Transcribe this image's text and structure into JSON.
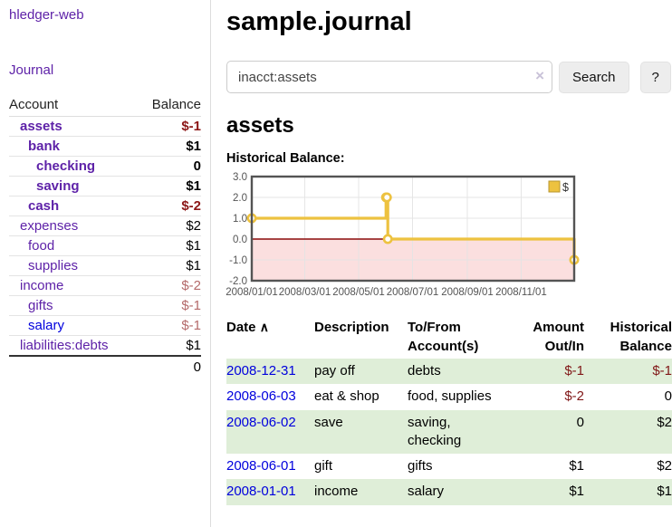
{
  "app": {
    "title": "hledger-web"
  },
  "nav": {
    "journal": "Journal"
  },
  "sidebar": {
    "columns": {
      "account": "Account",
      "balance": "Balance"
    },
    "accounts": [
      {
        "name": "assets",
        "balance": "$-1"
      },
      {
        "name": "bank",
        "balance": "$1"
      },
      {
        "name": "checking",
        "balance": "0"
      },
      {
        "name": "saving",
        "balance": "$1"
      },
      {
        "name": "cash",
        "balance": "$-2"
      },
      {
        "name": "expenses",
        "balance": "$2"
      },
      {
        "name": "food",
        "balance": "$1"
      },
      {
        "name": "supplies",
        "balance": "$1"
      },
      {
        "name": "income",
        "balance": "$-2"
      },
      {
        "name": "gifts",
        "balance": "$-1"
      },
      {
        "name": "salary",
        "balance": "$-1"
      },
      {
        "name": "liabilities:debts",
        "balance": "$1"
      }
    ],
    "total": "0"
  },
  "main": {
    "title": "sample.journal",
    "search": {
      "value": "inacct:assets",
      "clear_icon": "×",
      "search_button": "Search",
      "help_button": "?"
    },
    "account_title": "assets"
  },
  "chart_data": {
    "type": "line",
    "title": "Historical Balance:",
    "series": [
      {
        "name": "$",
        "color": "#edc240",
        "step": true,
        "x": [
          "2008-01-01",
          "2008-06-01",
          "2008-06-02",
          "2008-06-03",
          "2008-12-31"
        ],
        "values": [
          1,
          2,
          2,
          0,
          -1
        ]
      }
    ],
    "xlim": [
      "2008-01-01",
      "2008-12-31"
    ],
    "ylim": [
      -2,
      3
    ],
    "y_ticks": [
      3.0,
      2.0,
      1.0,
      0.0,
      -1.0,
      -2.0
    ],
    "x_ticks": [
      "2008/01/01",
      "2008/03/01",
      "2008/05/01",
      "2008/07/01",
      "2008/09/01",
      "2008/11/01"
    ],
    "legend": {
      "label": "$",
      "position": "top-right",
      "swatch_color": "#edc240"
    },
    "grid": true,
    "grid_color": "#e3e3e3",
    "axis_color": "#545454",
    "border_color": "#545454",
    "zero_line_color": "#8b0c0c",
    "negative_region": {
      "from": 0,
      "to": -2,
      "color": "#fbdfdf"
    }
  },
  "register": {
    "columns": {
      "date": "Date",
      "sort_icon": "∧",
      "description": "Description",
      "accounts": "To/From Account(s)",
      "amount": "Amount Out/In",
      "balance": "Historical Balance"
    },
    "rows": [
      {
        "date": "2008-12-31",
        "description": "pay off",
        "accounts": "debts",
        "amount": "$-1",
        "balance": "$-1"
      },
      {
        "date": "2008-06-03",
        "description": "eat & shop",
        "accounts": "food, supplies",
        "amount": "$-2",
        "balance": "0"
      },
      {
        "date": "2008-06-02",
        "description": "save",
        "accounts": "saving, checking",
        "amount": "0",
        "balance": "$2"
      },
      {
        "date": "2008-06-01",
        "description": "gift",
        "accounts": "gifts",
        "amount": "$1",
        "balance": "$2"
      },
      {
        "date": "2008-01-01",
        "description": "income",
        "accounts": "salary",
        "amount": "$1",
        "balance": "$1"
      }
    ]
  }
}
